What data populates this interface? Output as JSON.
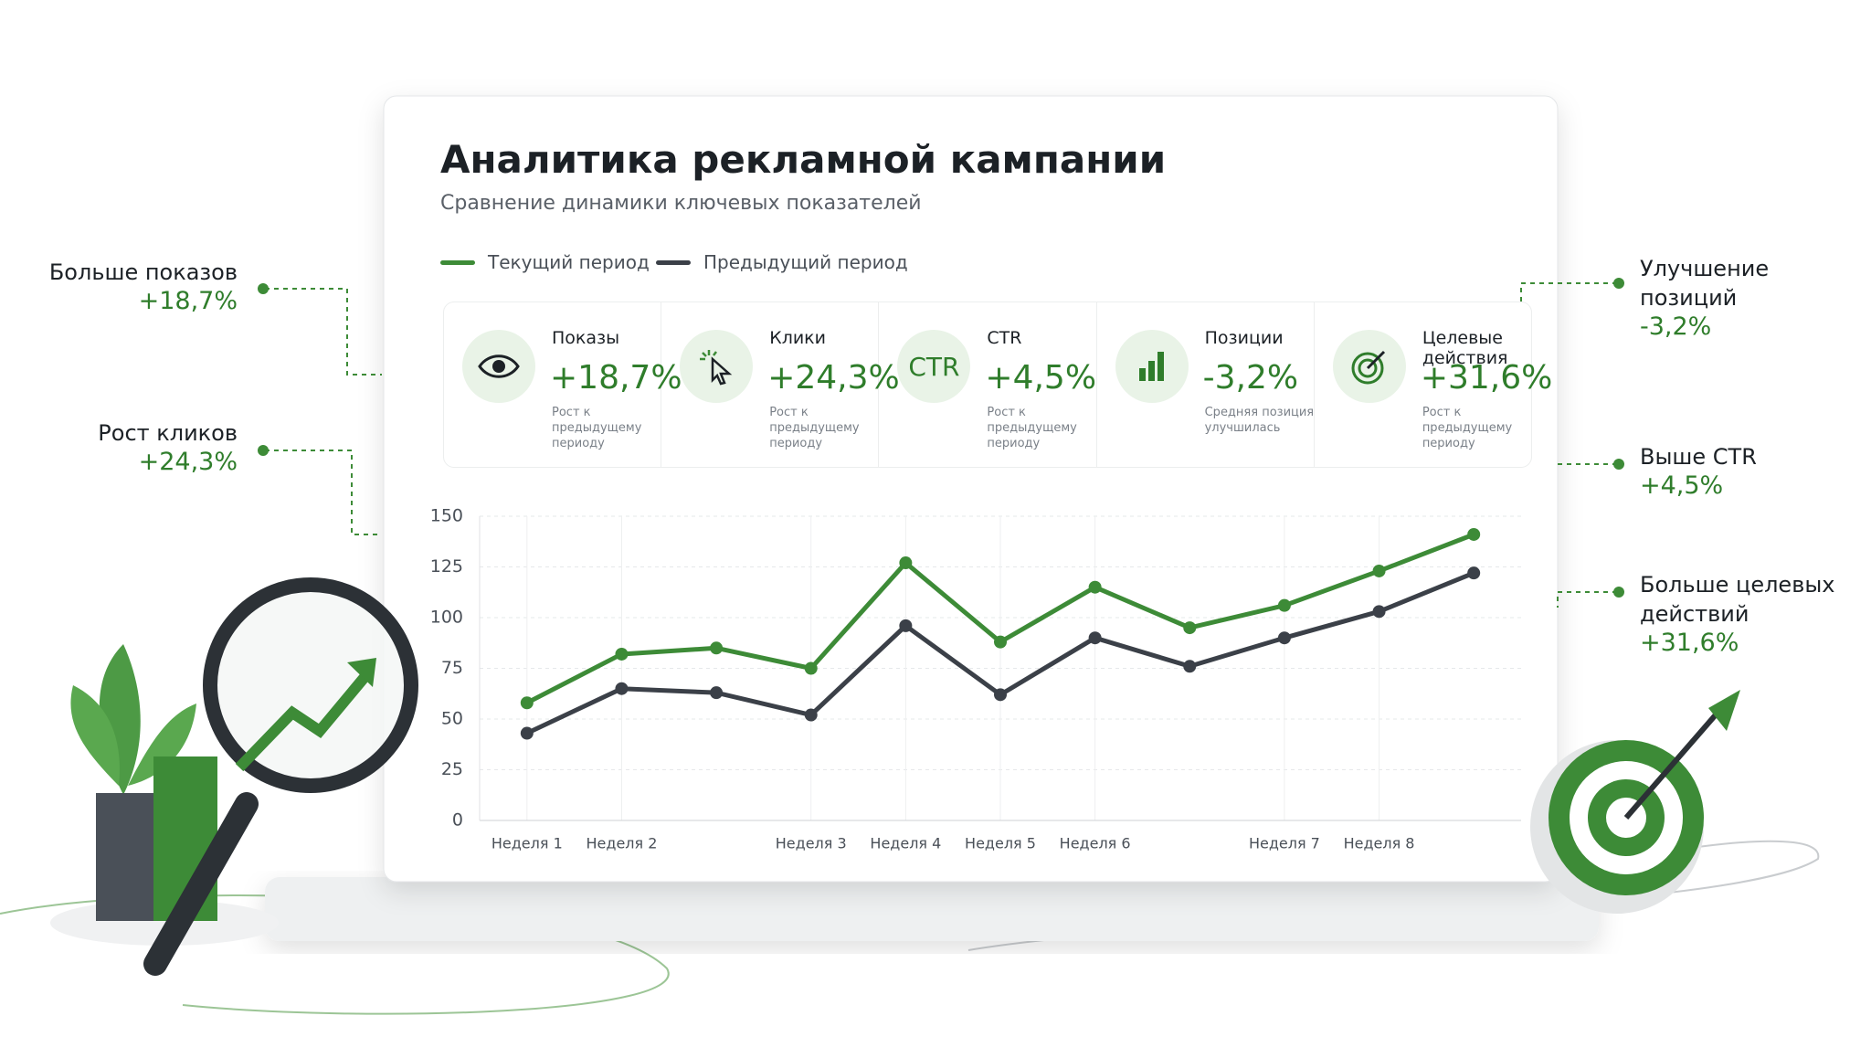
{
  "header": {
    "title": "Аналитика рекламной кампании",
    "subtitle": "Сравнение динамики ключевых показателей"
  },
  "kpis": [
    {
      "label": "Показы",
      "value": "+18,7%",
      "note": "Рост к предыдущему периоду"
    },
    {
      "label": "Клики",
      "value": "+24,3%",
      "note": "Рост к предыдущему периоду"
    },
    {
      "icon_text": "CTR",
      "label": "CTR",
      "value": "+4,5%",
      "note": "Рост к предыдущему периоду"
    },
    {
      "label": "Позиции",
      "value": "-3,2%",
      "note": "Средняя позиция улучшилась"
    },
    {
      "label": "Целевые действия",
      "value": "+31,6%",
      "note": "Рост к предыдущему периоду"
    }
  ],
  "callouts": [
    {
      "label": "Больше показов",
      "value": "+18,7%"
    },
    {
      "label": "Рост кликов",
      "value": "+24,3%"
    },
    {
      "label": "Улучшение позиций",
      "value": "-3,2%"
    },
    {
      "label": "Выше CTR",
      "value": "+4,5%"
    },
    {
      "label": "Больше целевых действий",
      "value": "+31,6%"
    }
  ],
  "chart_data": {
    "type": "line",
    "categories": [
      "Неделя 1",
      "Неделя 2",
      null,
      "Неделя 3",
      "Неделя 4",
      "Неделя 5",
      "Неделя 6",
      null,
      "Неделя 7",
      "Неделя 8",
      null
    ],
    "series": [
      {
        "name": "Текущий период",
        "color": "#3d8b37",
        "values": [
          58,
          82,
          85,
          75,
          127,
          88,
          115,
          95,
          106,
          123,
          141
        ]
      },
      {
        "name": "Предыдущий период",
        "color": "#3b4048",
        "values": [
          43,
          65,
          63,
          52,
          96,
          62,
          90,
          76,
          90,
          103,
          122
        ]
      }
    ],
    "ylim": [
      0,
      150
    ],
    "yticks": [
      0,
      25,
      50,
      75,
      100,
      125,
      150
    ],
    "grid": true
  }
}
